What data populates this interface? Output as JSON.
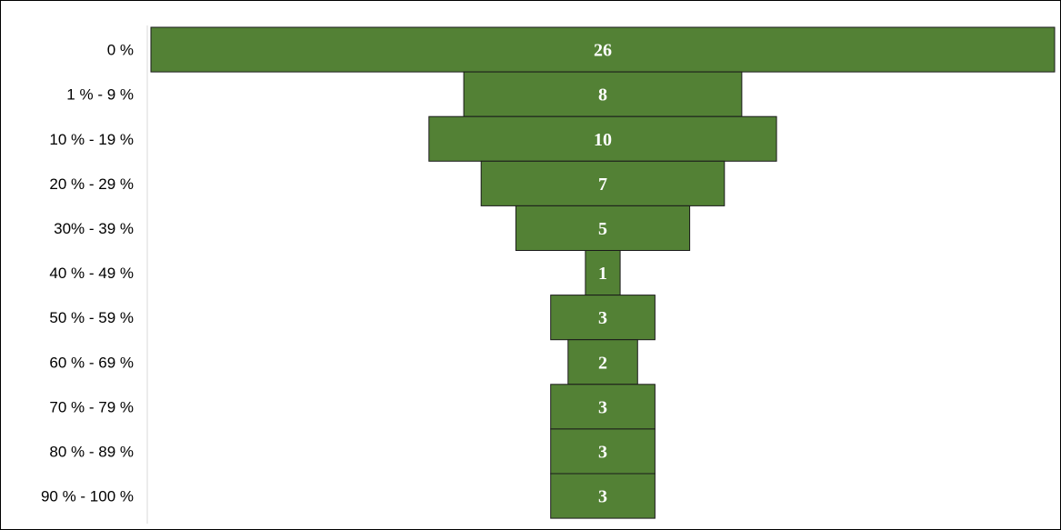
{
  "chart_data": {
    "type": "bar",
    "subtype": "funnel",
    "title": "",
    "xlabel": "",
    "ylabel": "",
    "categories": [
      "0 %",
      "1 % - 9 %",
      "10 % - 19 %",
      "20 % - 29 %",
      "30% - 39 %",
      "40 % - 49 %",
      "50 % - 59 %",
      "60 % - 69 %",
      "70 % - 79 %",
      "80 % - 89 %",
      "90 % - 100 %"
    ],
    "values": [
      26,
      8,
      10,
      7,
      5,
      1,
      3,
      2,
      3,
      3,
      3
    ],
    "data_labels": [
      "26",
      "8",
      "10",
      "7",
      "5",
      "1",
      "3",
      "2",
      "3",
      "3",
      "3"
    ],
    "xlim": [
      0,
      26
    ],
    "grid": false,
    "legend": "none",
    "colors": {
      "bar_fill": "#538135",
      "bar_stroke": "#1a1a1a",
      "data_label": "#ffffff",
      "category_label": "#000000",
      "axis_line": "#d9d9d9",
      "frame": "#000000"
    }
  }
}
